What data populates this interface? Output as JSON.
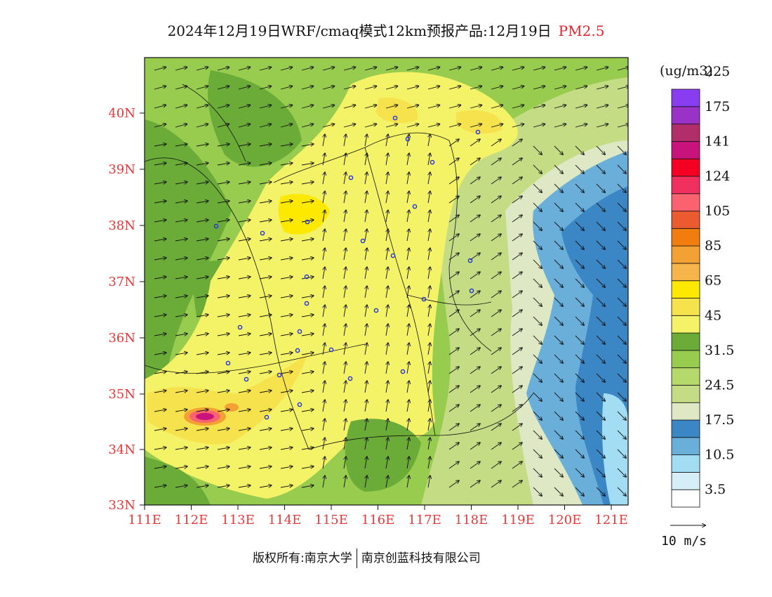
{
  "title": {
    "main": "2024年12月19日WRF/cmaq模式12km预报产品:12月19日",
    "pollutant": "PM2.5"
  },
  "map": {
    "lat_labels": [
      "40N",
      "39N",
      "38N",
      "37N",
      "36N",
      "35N",
      "34N",
      "33N"
    ],
    "lon_labels": [
      "111E",
      "112E",
      "113E",
      "114E",
      "115E",
      "116E",
      "117E",
      "118E",
      "119E",
      "120E",
      "121E"
    ],
    "label_color": "#e23a3a"
  },
  "colorbar": {
    "unit": "(ug/m3)",
    "colors": [
      "#ffffff",
      "#d5eef8",
      "#a2ddf4",
      "#6aafd9",
      "#3b86c4",
      "#dfe8c4",
      "#c4dd85",
      "#b5d96b",
      "#98cc4f",
      "#6aac37",
      "#f4f266",
      "#f6e24c",
      "#fde800",
      "#f5b54a",
      "#f3a135",
      "#f07d0e",
      "#ec5a30",
      "#fa6270",
      "#f23060",
      "#f30022",
      "#c8127c",
      "#b22e6a",
      "#9b32c8",
      "#8a3cf0"
    ],
    "labels": [
      "3.5",
      "10.5",
      "17.5",
      "24.5",
      "31.5",
      "45",
      "65",
      "85",
      "105",
      "124",
      "141",
      "175",
      "225"
    ]
  },
  "vector_reference": {
    "label": "10 m/s"
  },
  "copyright": {
    "left": "版权所有:南京大学",
    "right": "南京创蓝科技有限公司"
  }
}
